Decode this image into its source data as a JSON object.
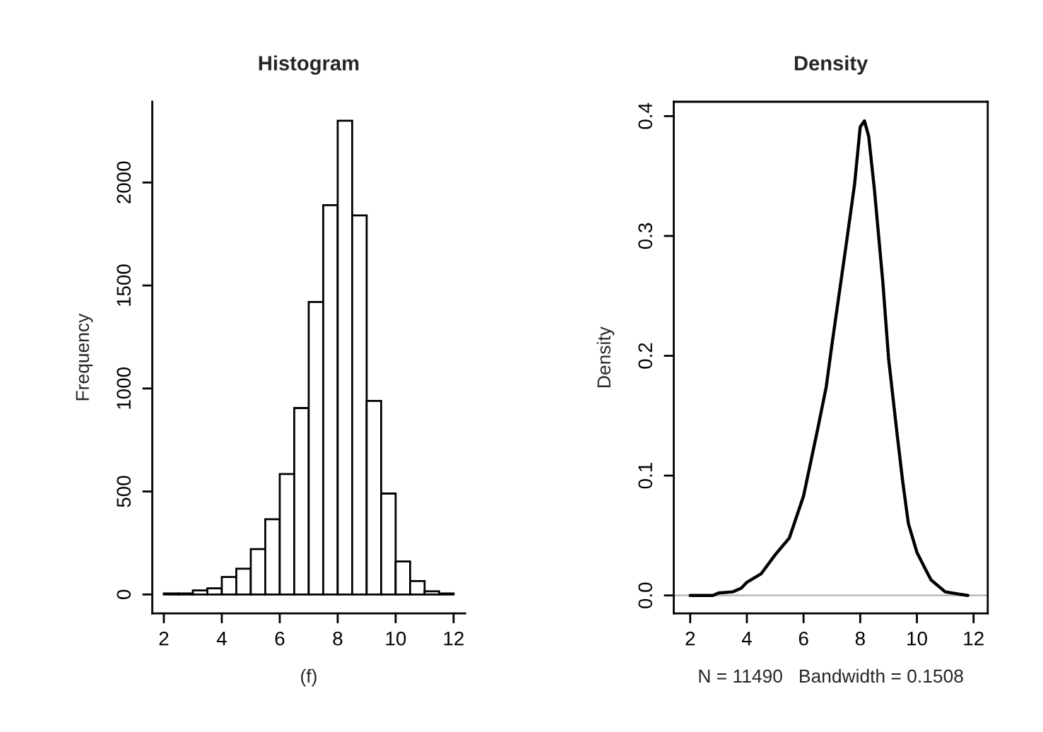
{
  "chart_data": [
    {
      "type": "histogram",
      "title": "Histogram",
      "xlabel": "(f)",
      "ylabel": "Frequency",
      "bins": [
        2,
        2.5,
        3,
        3.5,
        4,
        4.5,
        5,
        5.5,
        6,
        6.5,
        7,
        7.5,
        8,
        8.5,
        9,
        9.5,
        10,
        10.5,
        11,
        11.5,
        12
      ],
      "values": [
        5,
        5,
        20,
        30,
        85,
        125,
        220,
        365,
        585,
        905,
        1420,
        1890,
        2300,
        1840,
        940,
        490,
        160,
        65,
        15,
        5
      ],
      "color": "#ffffff",
      "xlim": [
        1.6,
        12.4
      ],
      "ylim": [
        -92,
        2392
      ],
      "xticks": [
        2,
        4,
        6,
        8,
        10,
        12
      ],
      "yticks": [
        0,
        500,
        1000,
        1500,
        2000
      ],
      "grid": false
    },
    {
      "type": "line",
      "title": "Density",
      "xlabel": "N = 11490   Bandwidth = 0.1508",
      "ylabel": "Density",
      "x": [
        2,
        2.8,
        3.0,
        3.5,
        3.8,
        4.0,
        4.5,
        5.0,
        5.5,
        6.0,
        6.5,
        6.8,
        7.0,
        7.5,
        7.8,
        8.0,
        8.15,
        8.3,
        8.5,
        8.8,
        9.0,
        9.3,
        9.5,
        9.7,
        10.0,
        10.3,
        10.5,
        11.0,
        11.5,
        11.8
      ],
      "series": [
        {
          "color": "#000000",
          "values": [
            0,
            0,
            0.002,
            0.003,
            0.006,
            0.011,
            0.018,
            0.034,
            0.048,
            0.083,
            0.139,
            0.174,
            0.209,
            0.292,
            0.343,
            0.391,
            0.396,
            0.383,
            0.339,
            0.261,
            0.198,
            0.135,
            0.095,
            0.06,
            0.036,
            0.022,
            0.013,
            0.003,
            0.001,
            0
          ]
        }
      ],
      "xlim": [
        1.42,
        12.5
      ],
      "ylim": [
        -0.015,
        0.412
      ],
      "xticks": [
        2,
        4,
        6,
        8,
        10,
        12
      ],
      "yticks": [
        {
          "value": 0,
          "label": "0.0"
        },
        0.1,
        0.2,
        0.3,
        0.4
      ],
      "ref_lines": [
        {
          "axis": "y",
          "value": 0,
          "color": "#bebebe"
        }
      ],
      "grid": false
    }
  ]
}
